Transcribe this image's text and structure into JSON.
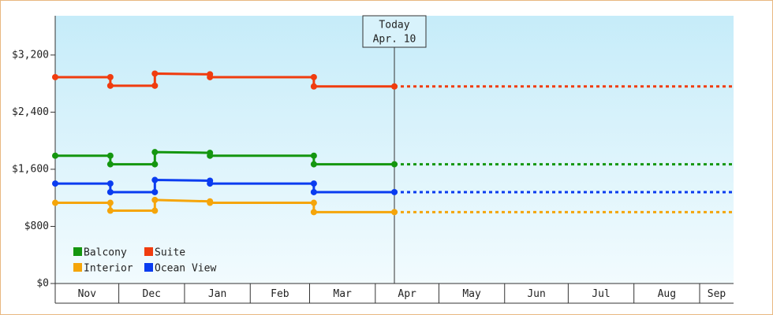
{
  "chart_data": {
    "type": "line",
    "step": true,
    "x_categories": [
      "Nov",
      "Dec",
      "Jan",
      "Feb",
      "Mar",
      "Apr",
      "May",
      "Jun",
      "Jul",
      "Aug",
      "Sep"
    ],
    "xticks": [
      0,
      30,
      61,
      92,
      120,
      151,
      181,
      212,
      242,
      273,
      304
    ],
    "xlim": [
      0,
      320
    ],
    "x": [
      0,
      26,
      26,
      47,
      47,
      73,
      73,
      122,
      122,
      160
    ],
    "ylim": [
      0,
      3750
    ],
    "yticks": [
      {
        "value": 0,
        "label": "$0"
      },
      {
        "value": 800,
        "label": "$800"
      },
      {
        "value": 1600,
        "label": "$1,600"
      },
      {
        "value": 2400,
        "label": "$2,400"
      },
      {
        "value": 3200,
        "label": "$3,200"
      }
    ],
    "series": [
      {
        "name": "Balcony",
        "color": "#14960f",
        "values": [
          1790,
          1790,
          1670,
          1670,
          1840,
          1830,
          1790,
          1790,
          1670,
          1670
        ]
      },
      {
        "name": "Suite",
        "color": "#f03c0f",
        "values": [
          2890,
          2890,
          2770,
          2770,
          2940,
          2930,
          2890,
          2890,
          2760,
          2760
        ]
      },
      {
        "name": "Interior",
        "color": "#f5a50a",
        "values": [
          1130,
          1130,
          1020,
          1020,
          1170,
          1150,
          1130,
          1130,
          1000,
          1000
        ]
      },
      {
        "name": "Ocean View",
        "color": "#0a3cf0",
        "values": [
          1400,
          1400,
          1280,
          1280,
          1450,
          1440,
          1400,
          1400,
          1280,
          1280
        ]
      }
    ],
    "annotation": {
      "lines": [
        "Today",
        "Apr. 10"
      ],
      "x": 160
    },
    "legend": "lower left"
  }
}
